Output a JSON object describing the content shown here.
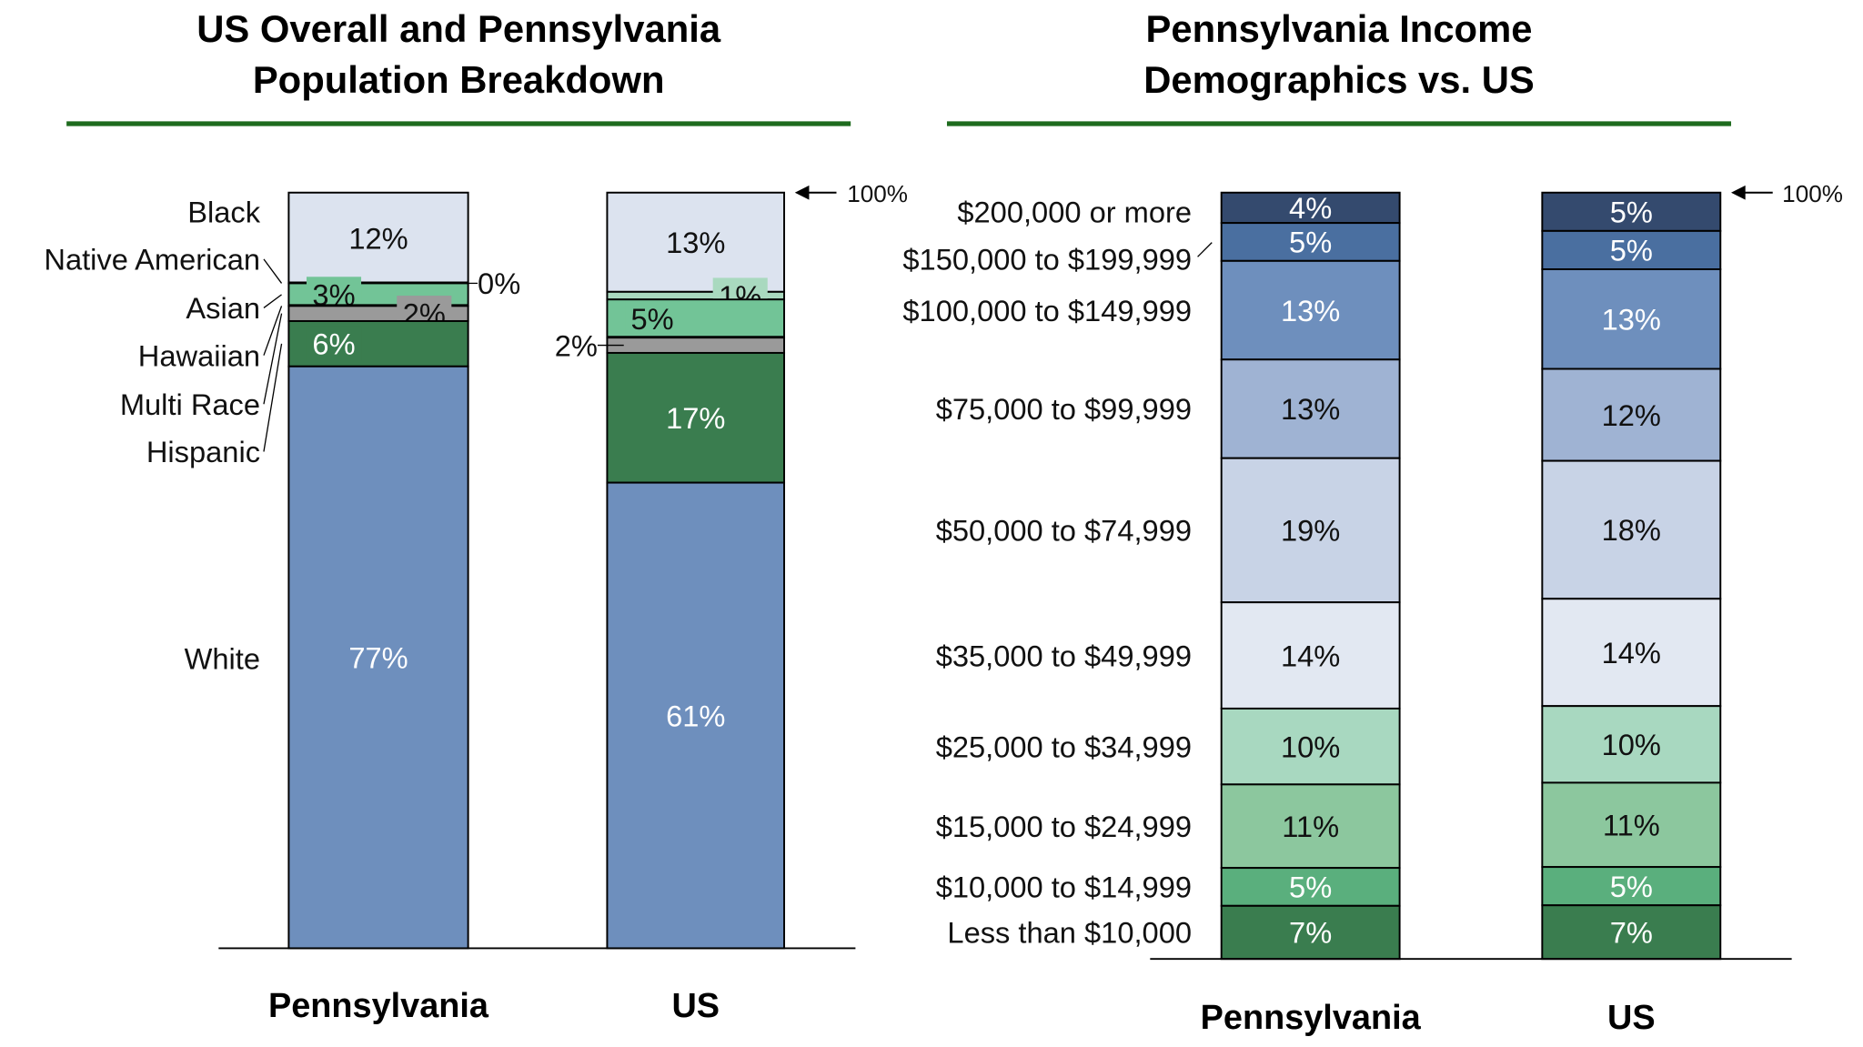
{
  "chart_data": [
    {
      "type": "bar",
      "stacked": true,
      "title": [
        "US Overall and Pennsylvania",
        "Population Breakdown"
      ],
      "categories": [
        "Pennsylvania",
        "US"
      ],
      "top_marker": "100%",
      "series": [
        {
          "name": "Black",
          "color": "#dce3ef",
          "values": [
            12,
            13
          ],
          "labels": [
            "12%",
            "13%"
          ]
        },
        {
          "name": "Native American",
          "color": "#a9d9bf",
          "values": [
            0,
            1
          ],
          "labels": [
            "0%",
            "1%"
          ]
        },
        {
          "name": "Asian",
          "color": "#72c497",
          "values": [
            3,
            5
          ],
          "labels": [
            "3%",
            "5%"
          ]
        },
        {
          "name": "Hawaiian",
          "color": "#000000",
          "values": [
            0,
            0
          ],
          "labels": [
            null,
            null
          ]
        },
        {
          "name": "Multi Race",
          "color": "#9a9a9a",
          "values": [
            2,
            2
          ],
          "labels": [
            "2%",
            "2%"
          ]
        },
        {
          "name": "Hispanic",
          "color": "#3a7d4f",
          "values": [
            6,
            17
          ],
          "labels": [
            "6%",
            "17%"
          ]
        },
        {
          "name": "White",
          "color": "#6e8fbd",
          "values": [
            77,
            61
          ],
          "labels": [
            "77%",
            "61%"
          ]
        }
      ],
      "ylim": [
        0,
        100
      ]
    },
    {
      "type": "bar",
      "stacked": true,
      "title": [
        "Pennsylvania Income",
        "Demographics vs. US"
      ],
      "categories": [
        "Pennsylvania",
        "US"
      ],
      "top_marker": "100%",
      "series": [
        {
          "name": "$200,000 or more",
          "color": "#344a6e",
          "values": [
            4,
            5
          ],
          "labels": [
            "4%",
            "5%"
          ]
        },
        {
          "name": "$150,000 to $199,999",
          "color": "#4a6fa0",
          "values": [
            5,
            5
          ],
          "labels": [
            "5%",
            "5%"
          ]
        },
        {
          "name": "$100,000 to $149,999",
          "color": "#6e8fbd",
          "values": [
            13,
            13
          ],
          "labels": [
            "13%",
            "13%"
          ]
        },
        {
          "name": "$75,000 to $99,999",
          "color": "#9fb3d3",
          "values": [
            13,
            12
          ],
          "labels": [
            "13%",
            "12%"
          ]
        },
        {
          "name": "$50,000 to $74,999",
          "color": "#c8d3e6",
          "values": [
            19,
            18
          ],
          "labels": [
            "19%",
            "18%"
          ]
        },
        {
          "name": "$35,000 to $49,999",
          "color": "#e2e8f2",
          "values": [
            14,
            14
          ],
          "labels": [
            "14%",
            "14%"
          ]
        },
        {
          "name": "$25,000 to $34,999",
          "color": "#a8d8c0",
          "values": [
            10,
            10
          ],
          "labels": [
            "10%",
            "10%"
          ]
        },
        {
          "name": "$15,000 to $24,999",
          "color": "#8cc79e",
          "values": [
            11,
            11
          ],
          "labels": [
            "11%",
            "11%"
          ]
        },
        {
          "name": "$10,000 to $14,999",
          "color": "#5aaf7d",
          "values": [
            5,
            5
          ],
          "labels": [
            "5%",
            "5%"
          ]
        },
        {
          "name": "Less than $10,000",
          "color": "#3a7d4f",
          "values": [
            7,
            7
          ],
          "labels": [
            "7%",
            "7%"
          ]
        }
      ],
      "ylim": [
        0,
        100
      ]
    }
  ],
  "colors": {
    "title_rule": "#1e6b1e"
  }
}
